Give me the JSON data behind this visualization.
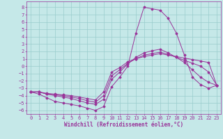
{
  "xlabel": "Windchill (Refroidissement éolien,°C)",
  "background_color": "#c5e8e8",
  "line_color": "#993399",
  "grid_color": "#99cccc",
  "xlim_min": -0.5,
  "xlim_max": 23.5,
  "ylim_min": -6.5,
  "ylim_max": 8.8,
  "xticks": [
    0,
    1,
    2,
    3,
    4,
    5,
    6,
    7,
    8,
    9,
    10,
    11,
    12,
    13,
    14,
    15,
    16,
    17,
    18,
    19,
    20,
    21,
    22,
    23
  ],
  "yticks": [
    8,
    7,
    6,
    5,
    4,
    3,
    2,
    1,
    0,
    -1,
    -2,
    -3,
    -4,
    -5,
    -6
  ],
  "x": [
    0,
    1,
    2,
    3,
    4,
    5,
    6,
    7,
    8,
    9,
    10,
    11,
    12,
    13,
    14,
    15,
    16,
    17,
    18,
    19,
    20,
    21,
    22,
    23
  ],
  "series": [
    [
      -3.5,
      -3.8,
      -4.3,
      -4.8,
      -5.0,
      -5.2,
      -5.4,
      -5.7,
      -6.0,
      -5.5,
      -2.8,
      -1.5,
      0.0,
      4.5,
      8.0,
      7.8,
      7.6,
      6.5,
      4.5,
      1.5,
      -1.5,
      -2.5,
      -3.0,
      -2.6
    ],
    [
      -3.5,
      -3.5,
      -3.8,
      -4.0,
      -4.2,
      -4.4,
      -4.7,
      -5.0,
      -5.2,
      -4.5,
      -1.8,
      -0.8,
      0.3,
      1.2,
      1.8,
      2.1,
      2.3,
      1.8,
      1.2,
      0.5,
      -0.5,
      -1.5,
      -2.2,
      -2.6
    ],
    [
      -3.5,
      -3.5,
      -3.8,
      -3.9,
      -4.0,
      -4.2,
      -4.4,
      -4.7,
      -4.9,
      -4.0,
      -1.3,
      -0.5,
      0.4,
      1.0,
      1.5,
      1.7,
      1.9,
      1.6,
      1.2,
      0.8,
      0.4,
      0.0,
      -0.8,
      -2.6
    ],
    [
      -3.5,
      -3.5,
      -3.7,
      -3.8,
      -3.9,
      -4.0,
      -4.2,
      -4.4,
      -4.6,
      -3.5,
      -0.8,
      -0.2,
      0.6,
      1.0,
      1.3,
      1.5,
      1.7,
      1.5,
      1.3,
      1.1,
      0.9,
      0.7,
      0.5,
      -2.6
    ]
  ]
}
